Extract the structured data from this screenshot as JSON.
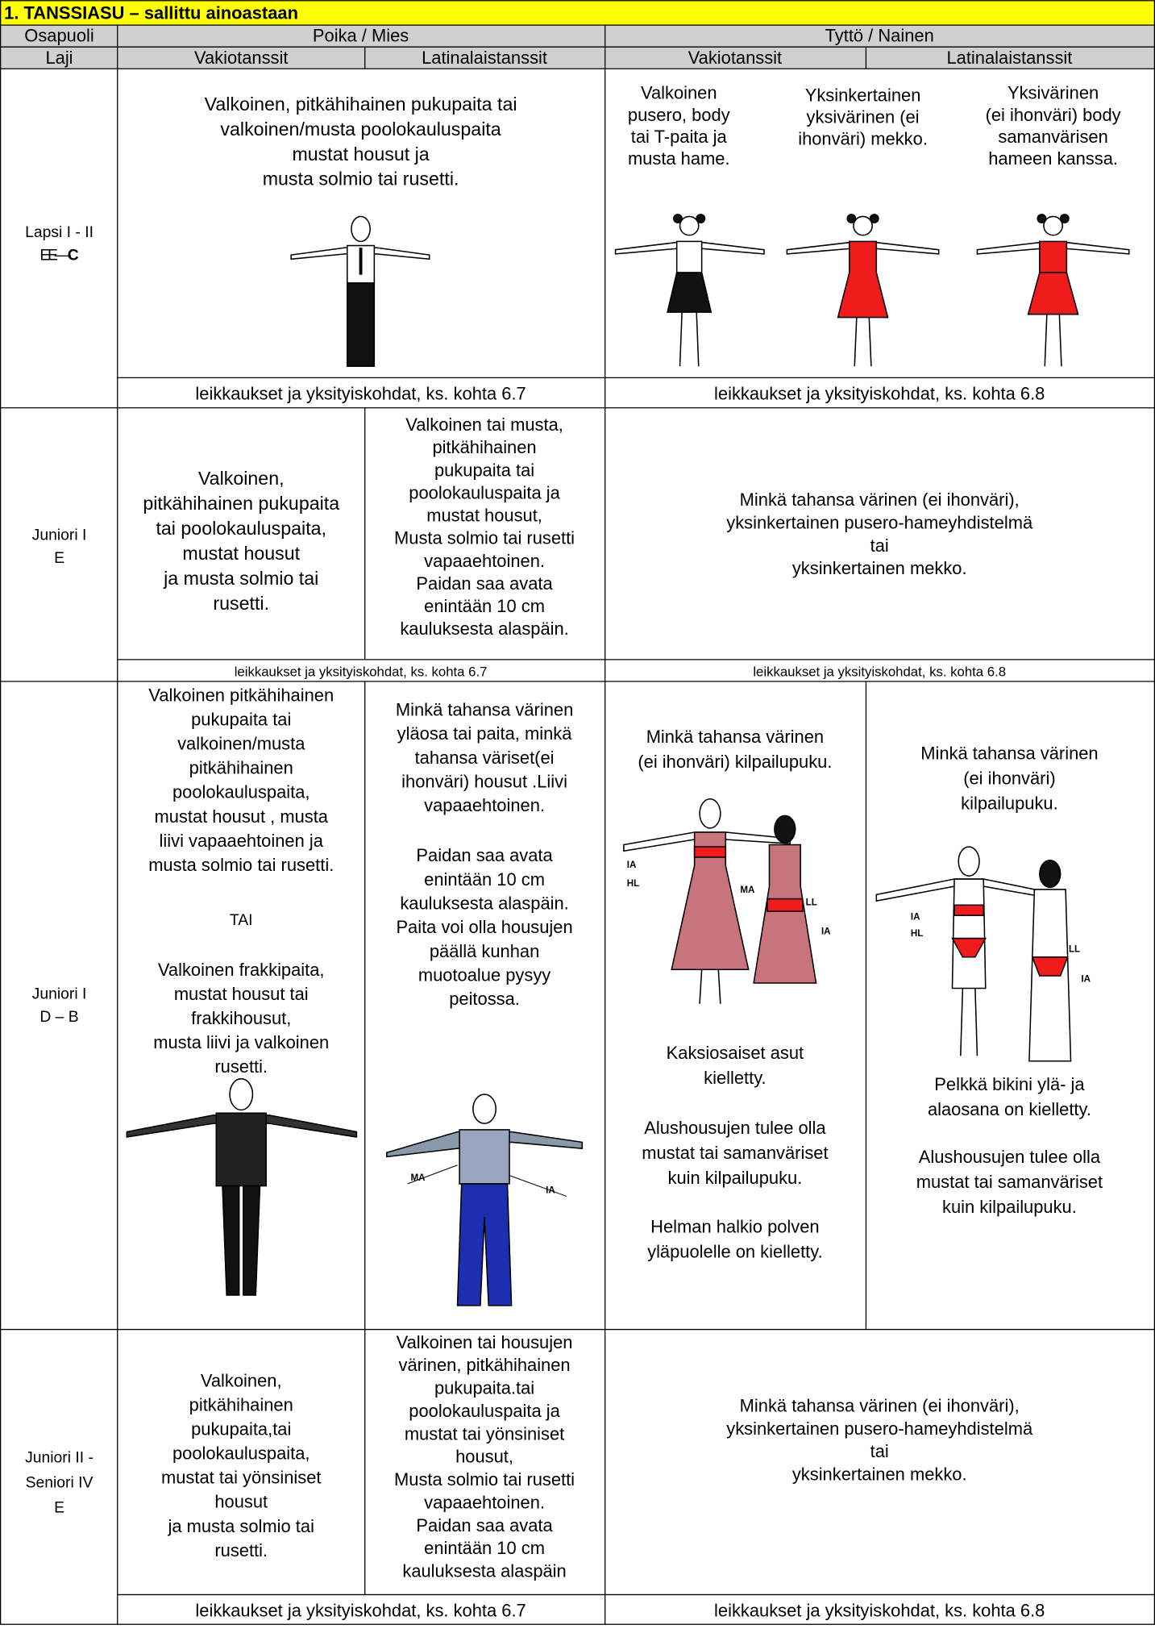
{
  "title": "1. TANSSIASU – sallittu ainoastaan",
  "header": {
    "party_label": "Osapuoli",
    "boy": "Poika / Mies",
    "girl": "Tyttö / Nainen",
    "category_label": "Laji",
    "boy_standard": "Vakiotanssit",
    "boy_latin": "Latinalaistanssit",
    "girl_standard": "Vakiotanssit",
    "girl_latin": "Latinalaistanssit"
  },
  "rows": [
    {
      "category": [
        "Lapsi I - II",
        "E – "
      ],
      "category_bold": "C",
      "boy": [
        "Valkoinen, pitkähihainen pukupaita tai",
        "valkoinen/musta poolokauluspaita",
        "mustat housut ja",
        "musta solmio tai rusetti."
      ],
      "girl_standard": [
        "Valkoinen",
        "pusero, body",
        "tai T-paita ja",
        "musta hame."
      ],
      "girl_dress": [
        "Yksinkertainen",
        "yksivärinen (ei",
        "ihonväri) mekko."
      ],
      "girl_body": [
        "Yksivärinen",
        "(ei ihonväri) body",
        "samanvärisen",
        "hameen kanssa."
      ],
      "boy_note": "leikkaukset ja yksityiskohdat, ks. kohta 6.7",
      "girl_note": "leikkaukset ja yksityiskohdat, ks. kohta 6.8"
    },
    {
      "category": [
        "Juniori I",
        "E"
      ],
      "boy_standard": [
        "Valkoinen,",
        "pitkähihainen pukupaita",
        "tai poolokauluspaita,",
        "mustat housut",
        "ja musta solmio tai",
        "rusetti."
      ],
      "boy_latin": [
        "Valkoinen tai musta,",
        "pitkähihainen",
        "pukupaita tai",
        "poolokauluspaita ja",
        "mustat housut,",
        "Musta solmio tai rusetti",
        "vapaaehtoinen.",
        "Paidan saa avata",
        "enintään 10 cm",
        "kauluksesta alaspäin."
      ],
      "girl": [
        "Minkä tahansa värinen (ei ihonväri),",
        "yksinkertainen pusero-hameyhdistelmä",
        "tai",
        "yksinkertainen mekko."
      ],
      "boy_note": "leikkaukset ja yksityiskohdat, ks. kohta 6.7",
      "girl_note": "leikkaukset ja yksityiskohdat, ks. kohta 6.8"
    },
    {
      "category": [
        "Juniori I",
        "D – B"
      ],
      "boy_standard_a": [
        "Valkoinen pitkähihainen",
        "pukupaita tai",
        "valkoinen/musta",
        "pitkähihainen",
        "poolokauluspaita,",
        "mustat housut , musta",
        "liivi vapaaehtoinen ja",
        "musta solmio tai rusetti."
      ],
      "boy_standard_or": "TAI",
      "boy_standard_b": [
        "Valkoinen frakkipaita,",
        "mustat housut tai",
        "frakkihousut,",
        "musta liivi ja valkoinen",
        "rusetti."
      ],
      "boy_latin_a": [
        "Minkä tahansa värinen",
        "yläosa tai paita, minkä",
        "tahansa väriset(ei",
        "ihonväri) housut .Liivi",
        "vapaaehtoinen."
      ],
      "boy_latin_b": [
        "Paidan saa avata",
        "enintään 10 cm",
        "kauluksesta alaspäin.",
        "Paita voi olla housujen",
        "päällä kunhan",
        "muotoalue pysyy",
        "peitossa."
      ],
      "boy_latin_labels": [
        "MA",
        "IA"
      ],
      "girl_standard_a": [
        "Minkä tahansa värinen",
        "(ei ihonväri) kilpailupuku."
      ],
      "girl_standard_labels": [
        "IA",
        "HL",
        "MA",
        "LL",
        "IA"
      ],
      "girl_standard_b": [
        "Kaksiosaiset asut",
        "kielletty."
      ],
      "girl_standard_c": [
        "Alushousujen tulee olla",
        "mustat tai samanväriset",
        "kuin kilpailupuku."
      ],
      "girl_standard_d": [
        "Helman halkio polven",
        "yläpuolelle on kielletty."
      ],
      "girl_latin_a": [
        "Minkä tahansa värinen",
        "(ei ihonväri)",
        "kilpailupuku."
      ],
      "girl_latin_labels": [
        "IA",
        "HL",
        "LL",
        "IA"
      ],
      "girl_latin_b": [
        "Pelkkä bikini ylä- ja",
        "alaosana on kielletty."
      ],
      "girl_latin_c": [
        "Alushousujen tulee olla",
        "mustat tai samanväriset",
        "kuin kilpailupuku."
      ]
    },
    {
      "category": [
        "Juniori II -",
        "Seniori IV",
        "E"
      ],
      "boy_standard": [
        "Valkoinen,",
        "pitkähihainen",
        "pukupaita,tai",
        "poolokauluspaita,",
        "mustat tai yönsiniset",
        "housut",
        "ja musta solmio tai",
        "rusetti."
      ],
      "boy_latin": [
        "Valkoinen tai housujen",
        "värinen, pitkähihainen",
        "pukupaita.tai",
        "poolokauluspaita ja",
        "mustat tai yönsiniset",
        "housut,",
        "Musta solmio tai rusetti",
        "vapaaehtoinen.",
        "Paidan saa avata",
        "enintään 10 cm",
        "kauluksesta alaspäin"
      ],
      "girl": [
        "Minkä tahansa värinen (ei ihonväri),",
        "yksinkertainen pusero-hameyhdistelmä",
        "tai",
        "yksinkertainen mekko."
      ],
      "boy_note": "leikkaukset ja yksityiskohdat, ks. kohta 6.7",
      "girl_note": "leikkaukset ja yksityiskohdat, ks. kohta 6.8"
    }
  ]
}
